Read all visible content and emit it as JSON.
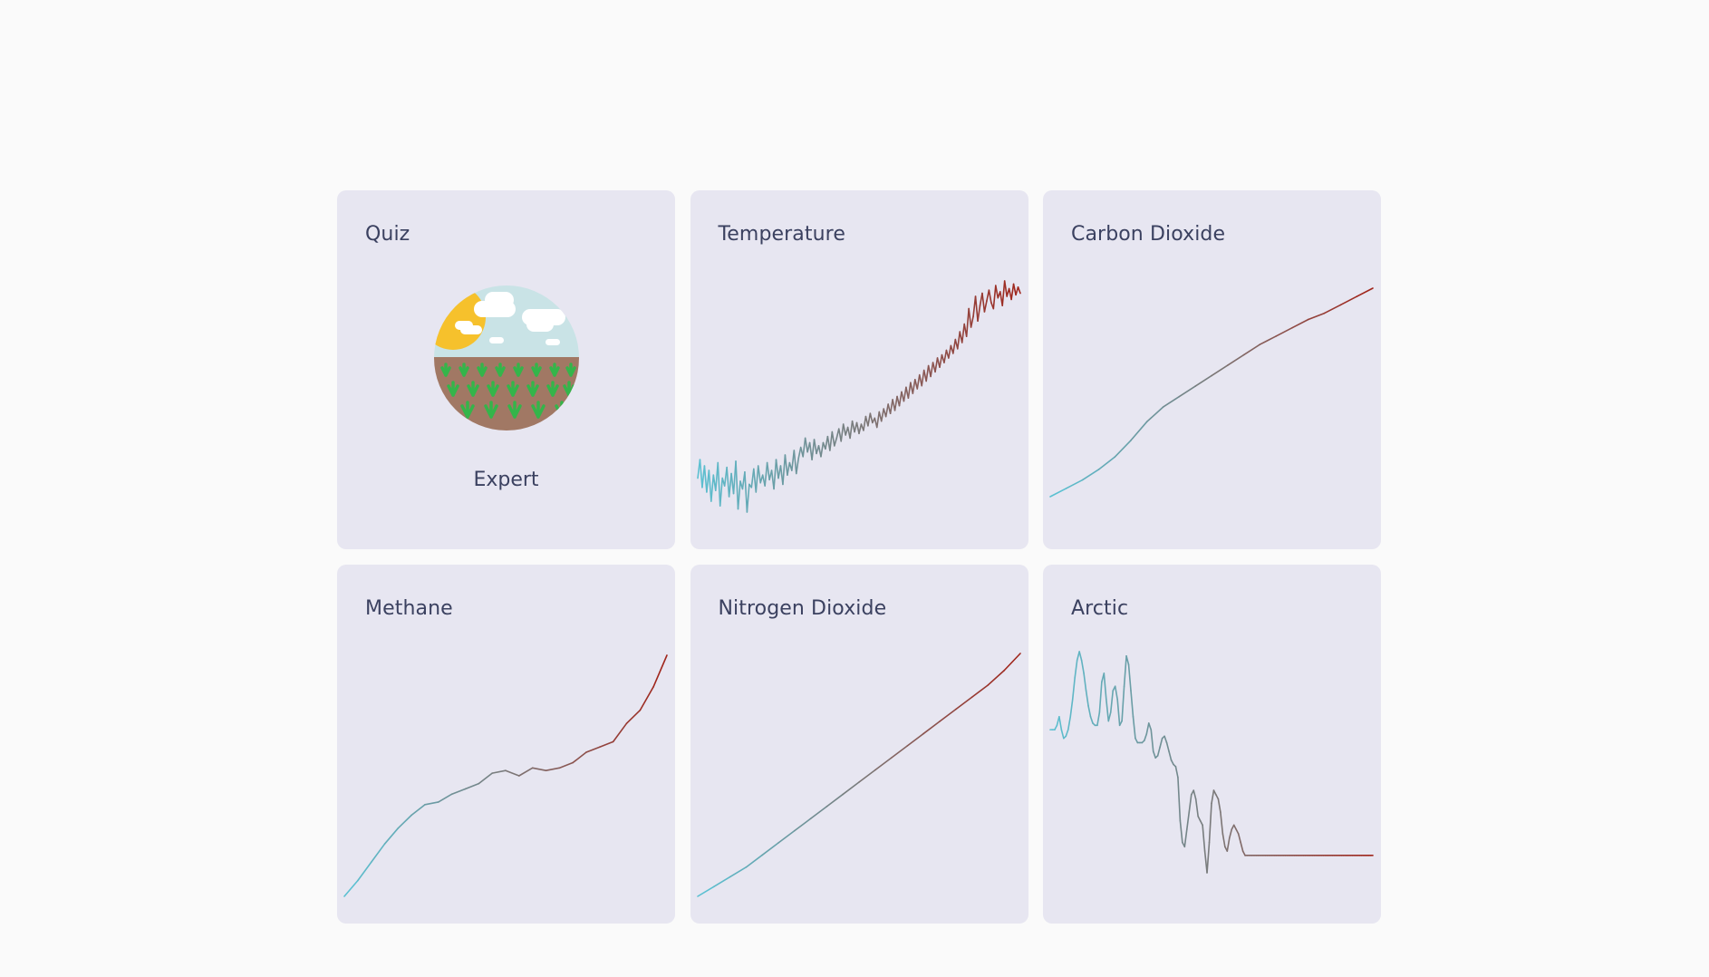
{
  "cards": [
    {
      "title": "Quiz",
      "label": "Expert",
      "icon": "farm-field-illustration"
    },
    {
      "title": "Temperature"
    },
    {
      "title": "Carbon Dioxide"
    },
    {
      "title": "Methane"
    },
    {
      "title": "Nitrogen Dioxide"
    },
    {
      "title": "Arctic"
    }
  ],
  "colors": {
    "start": "#5bc0d1",
    "mid": "#7a7a7a",
    "end": "#a0261c",
    "card_bg": "#e7e6f1",
    "title": "#3b4160"
  },
  "chart_data": [
    {
      "type": "line",
      "name": "Temperature",
      "title": "",
      "x": [
        0,
        1,
        2,
        3,
        4,
        5,
        6,
        7,
        8,
        9,
        10,
        11,
        12,
        13,
        14,
        15,
        16,
        17,
        18,
        19,
        20,
        21,
        22,
        23,
        24,
        25,
        26,
        27,
        28,
        29,
        30,
        31,
        32,
        33,
        34,
        35,
        36,
        37,
        38,
        39,
        40,
        41,
        42,
        43,
        44,
        45,
        46,
        47,
        48,
        49,
        50,
        51,
        52,
        53,
        54,
        55,
        56,
        57,
        58,
        59,
        60,
        61,
        62,
        63,
        64,
        65,
        66,
        67,
        68,
        69,
        70,
        71,
        72,
        73,
        74,
        75,
        76,
        77,
        78,
        79,
        80,
        81,
        82,
        83,
        84,
        85,
        86,
        87,
        88,
        89,
        90,
        91,
        92,
        93,
        94,
        95,
        96,
        97,
        98,
        99,
        100,
        101,
        102,
        103,
        104,
        105,
        106,
        107,
        108,
        109,
        110,
        111,
        112,
        113,
        114,
        115,
        116,
        117,
        118,
        119,
        120,
        121,
        122,
        123,
        124,
        125,
        126,
        127,
        128,
        129,
        130,
        131,
        132,
        133,
        134,
        135,
        136,
        137,
        138,
        139,
        140,
        141,
        142,
        143,
        144
      ],
      "y": [
        0.1,
        0.22,
        0.04,
        0.18,
        0.01,
        0.15,
        -0.05,
        0.12,
        0.02,
        0.2,
        -0.08,
        0.1,
        0.05,
        0.17,
        -0.02,
        0.13,
        0.0,
        0.21,
        -0.1,
        0.08,
        0.03,
        0.14,
        -0.12,
        0.06,
        0.04,
        0.16,
        0.01,
        0.18,
        0.07,
        0.12,
        0.05,
        0.2,
        0.09,
        0.15,
        0.03,
        0.22,
        0.1,
        0.18,
        0.06,
        0.25,
        0.12,
        0.2,
        0.15,
        0.28,
        0.13,
        0.23,
        0.3,
        0.24,
        0.36,
        0.27,
        0.33,
        0.22,
        0.35,
        0.26,
        0.31,
        0.24,
        0.33,
        0.29,
        0.37,
        0.28,
        0.4,
        0.31,
        0.36,
        0.42,
        0.34,
        0.45,
        0.38,
        0.43,
        0.36,
        0.47,
        0.4,
        0.46,
        0.39,
        0.45,
        0.41,
        0.5,
        0.44,
        0.52,
        0.46,
        0.49,
        0.43,
        0.53,
        0.47,
        0.55,
        0.5,
        0.58,
        0.52,
        0.61,
        0.54,
        0.63,
        0.57,
        0.66,
        0.6,
        0.69,
        0.62,
        0.72,
        0.65,
        0.74,
        0.68,
        0.77,
        0.7,
        0.8,
        0.73,
        0.83,
        0.76,
        0.85,
        0.79,
        0.88,
        0.82,
        0.9,
        0.85,
        0.93,
        0.88,
        0.96,
        0.91,
        1.0,
        0.94,
        1.05,
        0.98,
        1.1,
        1.02,
        1.2,
        1.08,
        1.15,
        1.28,
        1.12,
        1.22,
        1.3,
        1.18,
        1.25,
        1.32,
        1.24,
        1.2,
        1.35,
        1.27,
        1.31,
        1.22,
        1.38,
        1.28,
        1.33,
        1.26,
        1.36,
        1.29,
        1.34,
        1.3
      ]
    },
    {
      "type": "line",
      "name": "Carbon Dioxide",
      "title": "",
      "x": [
        0,
        1,
        2,
        3,
        4,
        5,
        6,
        7,
        8,
        9,
        10,
        11,
        12,
        13,
        14,
        15,
        16,
        17,
        18,
        19,
        20
      ],
      "y": [
        0.0,
        0.04,
        0.08,
        0.13,
        0.19,
        0.27,
        0.36,
        0.43,
        0.48,
        0.53,
        0.58,
        0.63,
        0.68,
        0.73,
        0.77,
        0.81,
        0.85,
        0.88,
        0.92,
        0.96,
        1.0
      ]
    },
    {
      "type": "line",
      "name": "Methane",
      "title": "",
      "x": [
        0,
        1,
        2,
        3,
        4,
        5,
        6,
        7,
        8,
        9,
        10,
        11,
        12,
        13,
        14,
        15,
        16,
        17,
        18,
        19,
        20,
        21,
        22,
        23,
        24
      ],
      "y": [
        0.0,
        0.06,
        0.13,
        0.2,
        0.26,
        0.31,
        0.35,
        0.36,
        0.39,
        0.41,
        0.43,
        0.47,
        0.48,
        0.46,
        0.49,
        0.48,
        0.49,
        0.51,
        0.55,
        0.57,
        0.59,
        0.66,
        0.71,
        0.8,
        0.92
      ]
    },
    {
      "type": "line",
      "name": "Nitrogen Dioxide",
      "title": "",
      "x": [
        0,
        1,
        2,
        3,
        4,
        5,
        6,
        7,
        8,
        9,
        10,
        11,
        12,
        13,
        14,
        15,
        16,
        17,
        18,
        19,
        20
      ],
      "y": [
        0.0,
        0.04,
        0.08,
        0.12,
        0.17,
        0.22,
        0.27,
        0.32,
        0.37,
        0.42,
        0.47,
        0.52,
        0.57,
        0.62,
        0.67,
        0.72,
        0.77,
        0.82,
        0.87,
        0.93,
        1.0
      ]
    },
    {
      "type": "line",
      "name": "Arctic",
      "title": "",
      "x": [
        0,
        1,
        2,
        3,
        4,
        5,
        6,
        7,
        8,
        9,
        10,
        11,
        12,
        13,
        14,
        15,
        16,
        17,
        18,
        19,
        20,
        21,
        22,
        23,
        24,
        25,
        26,
        27,
        28,
        29,
        30,
        31,
        32,
        33,
        34,
        35,
        36,
        37,
        38,
        39,
        40,
        41,
        42,
        43,
        44,
        45,
        46,
        47,
        48,
        49,
        50,
        51,
        52,
        53,
        54,
        55,
        56,
        57,
        58,
        59,
        60,
        61,
        62,
        63,
        64,
        65,
        66,
        67,
        68,
        69,
        70,
        71,
        72,
        73,
        74,
        75,
        76,
        77,
        78,
        79,
        80,
        81,
        82,
        83,
        84,
        85,
        86,
        87,
        88,
        89,
        90,
        91,
        92,
        93,
        94,
        95,
        96,
        97,
        98,
        99,
        100,
        101,
        102,
        103,
        104,
        105,
        106,
        107,
        108,
        109,
        110,
        111,
        112,
        113,
        114,
        115,
        116,
        117,
        118,
        119,
        120,
        121,
        122,
        123,
        124,
        125,
        126,
        127,
        128,
        129,
        130,
        131,
        132,
        133,
        134,
        135,
        136,
        137,
        138,
        139,
        140,
        141,
        142,
        143,
        144
      ],
      "y": [
        0.62,
        0.62,
        0.62,
        0.64,
        0.68,
        0.62,
        0.58,
        0.59,
        0.62,
        0.68,
        0.76,
        0.86,
        0.94,
        0.98,
        0.94,
        0.88,
        0.8,
        0.73,
        0.68,
        0.65,
        0.64,
        0.64,
        0.7,
        0.84,
        0.88,
        0.76,
        0.66,
        0.7,
        0.8,
        0.82,
        0.76,
        0.64,
        0.66,
        0.82,
        0.96,
        0.92,
        0.8,
        0.68,
        0.58,
        0.56,
        0.56,
        0.56,
        0.57,
        0.6,
        0.65,
        0.62,
        0.52,
        0.49,
        0.5,
        0.54,
        0.58,
        0.59,
        0.56,
        0.52,
        0.48,
        0.46,
        0.45,
        0.4,
        0.2,
        0.1,
        0.08,
        0.16,
        0.24,
        0.32,
        0.34,
        0.3,
        0.22,
        0.2,
        0.18,
        0.06,
        -0.04,
        0.1,
        0.28,
        0.34,
        0.32,
        0.3,
        0.24,
        0.14,
        0.08,
        0.06,
        0.12,
        0.16,
        0.18,
        0.16,
        0.14,
        0.1,
        0.06,
        0.04,
        0.04,
        0.04,
        0.04,
        0.04,
        0.04,
        0.04,
        0.04,
        0.04,
        0.04,
        0.04,
        0.04,
        0.04,
        0.04,
        0.04,
        0.04,
        0.04,
        0.04,
        0.04,
        0.04,
        0.04,
        0.04,
        0.04,
        0.04,
        0.04,
        0.04,
        0.04,
        0.04,
        0.04,
        0.04,
        0.04,
        0.04,
        0.04,
        0.04,
        0.04,
        0.04,
        0.04,
        0.04,
        0.04,
        0.04,
        0.04,
        0.04,
        0.04,
        0.04,
        0.04,
        0.04,
        0.04,
        0.04,
        0.04,
        0.04,
        0.04,
        0.04,
        0.04,
        0.04,
        0.04,
        0.04,
        0.04,
        0.04
      ]
    }
  ]
}
